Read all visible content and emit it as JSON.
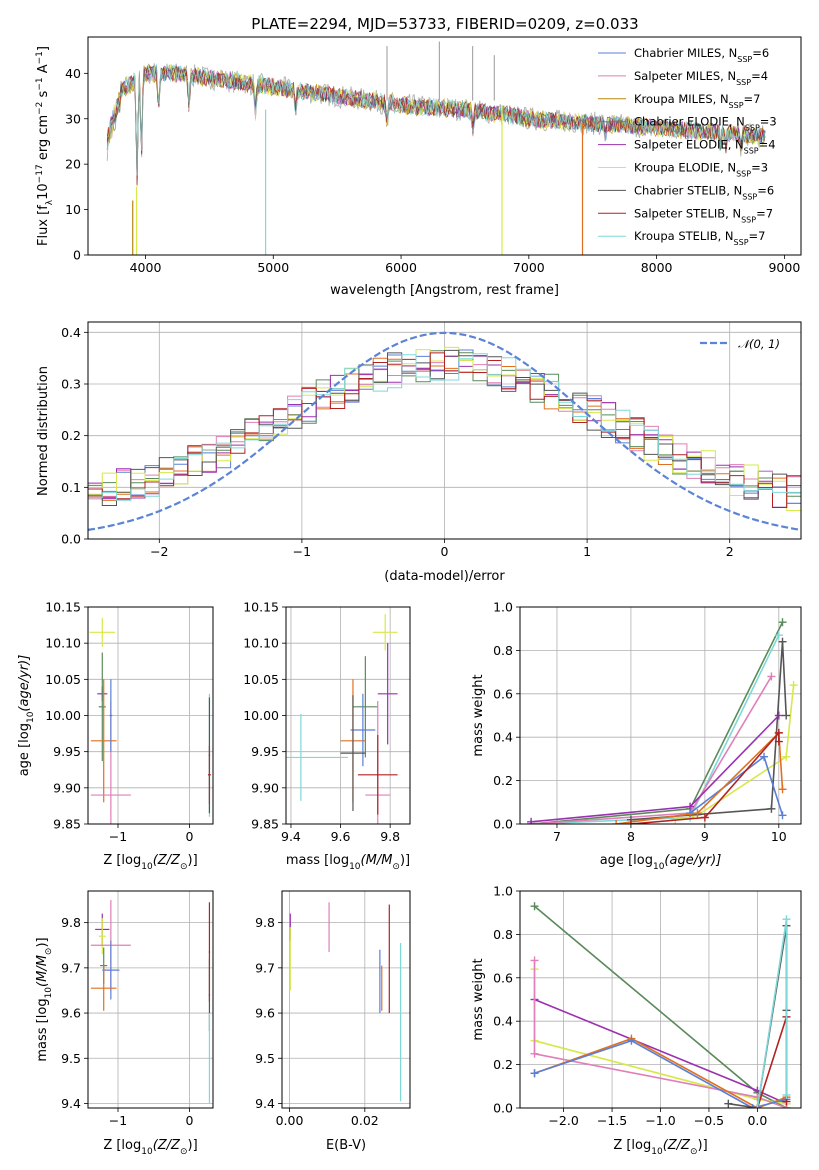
{
  "chart_data": [
    {
      "panel": "spectrum",
      "type": "line",
      "title": "PLATE=2294, MJD=53733, FIBERID=0209, z=0.033",
      "xlabel": "wavelength [Angstrom, rest frame]",
      "ylabel_parts": [
        "Flux [f",
        "λ",
        "10",
        "−17",
        " erg cm",
        "−2",
        " s",
        "−1",
        " A",
        "−1",
        "]"
      ],
      "xlim": [
        3550,
        9130
      ],
      "ylim": [
        0,
        48
      ],
      "xticks": [
        4000,
        5000,
        6000,
        7000,
        8000,
        9000
      ],
      "yticks": [
        0,
        10,
        20,
        30,
        40
      ],
      "grid": false,
      "legend_position": "top-right",
      "legend": [
        {
          "label": "Chabrier MILES, N",
          "sub": "SSP",
          "n": "=6",
          "color": "#5b7fd6"
        },
        {
          "label": "Salpeter MILES, N",
          "sub": "SSP",
          "n": "=4",
          "color": "#e07fb8"
        },
        {
          "label": "Kroupa MILES, N",
          "sub": "SSP",
          "n": "=7",
          "color": "#b8860b"
        },
        {
          "label": "Chabrier ELODIE, N",
          "sub": "SSP",
          "n": "=3",
          "color": "#5a8a5a"
        },
        {
          "label": "Salpeter ELODIE, N",
          "sub": "SSP",
          "n": "=4",
          "color": "#9b30b0"
        },
        {
          "label": "Kroupa ELODIE, N",
          "sub": "SSP",
          "n": "=3",
          "color": "#d7e84a"
        },
        {
          "label": "Chabrier STELIB, N",
          "sub": "SSP",
          "n": "=6",
          "color": "#555555"
        },
        {
          "label": "Salpeter STELIB, N",
          "sub": "SSP",
          "n": "=7",
          "color": "#b22222"
        },
        {
          "label": "Kroupa STELIB, N",
          "sub": "SSP",
          "n": "=7",
          "color": "#7fd8d8"
        }
      ],
      "continuum": {
        "x": [
          3700,
          3800,
          3900,
          4000,
          4200,
          4500,
          5000,
          5500,
          6000,
          6500,
          6800,
          7000,
          7500,
          8000,
          8500,
          8850
        ],
        "y": [
          27,
          36,
          38,
          40,
          40,
          39,
          37,
          35,
          33,
          32,
          31,
          30,
          29,
          28,
          27,
          26
        ]
      },
      "data_color": "#aaaaaa"
    },
    {
      "panel": "residuals",
      "type": "histogram",
      "xlabel": "(data-model)/error",
      "ylabel": "Normed distribution",
      "xlim": [
        -2.5,
        2.5
      ],
      "ylim": [
        0,
        0.42
      ],
      "xticks": [
        -2,
        -1,
        0,
        1,
        2
      ],
      "yticks": [
        0.0,
        0.1,
        0.2,
        0.3,
        0.4
      ],
      "grid": true,
      "legend_position": "top-right",
      "legend_label": "𝒩(0, 1)",
      "gauss_color": "#5b84d6",
      "bin_width": 0.1,
      "hist_colors": [
        "#5b7fd6",
        "#e07fb8",
        "#e07020",
        "#5a8a5a",
        "#9b30b0",
        "#d7e84a",
        "#555555",
        "#b22222",
        "#7fd8d8"
      ]
    },
    {
      "panel": "age-vs-Z",
      "type": "scatter",
      "xlabel_parts": [
        "Z [log",
        "10",
        "(Z/Z",
        "⊙",
        ")]"
      ],
      "ylabel_parts": [
        "age  [log",
        "10",
        "(age/yr)]"
      ],
      "xlim": [
        -1.42,
        0.33
      ],
      "ylim": [
        9.85,
        10.15
      ],
      "xticks": [
        -1,
        0
      ],
      "yticks": [
        9.85,
        9.9,
        9.95,
        10.0,
        10.05,
        10.1,
        10.15
      ],
      "grid": true,
      "points": [
        {
          "x": -1.22,
          "y": 10.115,
          "xerr": 0.18,
          "yerr": 0.02,
          "color": "#d7e84a"
        },
        {
          "x": -1.22,
          "y": 10.03,
          "xerr": 0.07,
          "yerr": 0.01,
          "color": "#9b30b0"
        },
        {
          "x": -1.22,
          "y": 10.012,
          "xerr": 0.05,
          "yerr": 0.075,
          "color": "#5a8a5a"
        },
        {
          "x": -1.2,
          "y": 9.965,
          "xerr": 0.18,
          "yerr": 0.085,
          "color": "#e07020"
        },
        {
          "x": -1.1,
          "y": 9.89,
          "xerr": 0.28,
          "yerr": 0.13,
          "color": "#e07fb8"
        },
        {
          "x": -1.1,
          "y": 10.0,
          "xerr": 0.02,
          "yerr": 0.05,
          "color": "#5b7fd6"
        },
        {
          "x": 0.28,
          "y": 9.945,
          "xerr": 0.01,
          "yerr": 0.085,
          "color": "#7fd8d8"
        },
        {
          "x": 0.28,
          "y": 9.918,
          "xerr": 0.02,
          "yerr": 0.04,
          "color": "#b22222"
        },
        {
          "x": 0.28,
          "y": 9.945,
          "xerr": 0.01,
          "yerr": 0.08,
          "color": "#555555"
        }
      ]
    },
    {
      "panel": "age-vs-mass",
      "type": "scatter",
      "xlabel_parts": [
        "mass [log",
        "10",
        "(M/M",
        "⊙",
        ")]"
      ],
      "xlim": [
        9.38,
        9.88
      ],
      "ylim": [
        9.85,
        10.15
      ],
      "xticks": [
        9.4,
        9.6,
        9.8
      ],
      "yticks": [
        9.85,
        9.9,
        9.95,
        10.0,
        10.05,
        10.1,
        10.15
      ],
      "grid": true,
      "points": [
        {
          "x": 9.78,
          "y": 10.115,
          "xerr": 0.05,
          "yerr": 0.025,
          "color": "#d7e84a"
        },
        {
          "x": 9.79,
          "y": 10.03,
          "xerr": 0.04,
          "yerr": 0.07,
          "color": "#9b30b0"
        },
        {
          "x": 9.7,
          "y": 10.012,
          "xerr": 0.05,
          "yerr": 0.07,
          "color": "#5a8a5a"
        },
        {
          "x": 9.65,
          "y": 9.965,
          "xerr": 0.05,
          "yerr": 0.085,
          "color": "#e07020"
        },
        {
          "x": 9.75,
          "y": 9.89,
          "xerr": 0.05,
          "yerr": 0.13,
          "color": "#e07fb8"
        },
        {
          "x": 9.69,
          "y": 9.98,
          "xerr": 0.05,
          "yerr": 0.05,
          "color": "#5b7fd6"
        },
        {
          "x": 9.44,
          "y": 9.942,
          "xerr": 0.19,
          "yerr": 0.06,
          "color": "#7fd8d8"
        },
        {
          "x": 9.75,
          "y": 9.918,
          "xerr": 0.08,
          "yerr": 0.055,
          "color": "#b22222"
        },
        {
          "x": 9.65,
          "y": 9.948,
          "xerr": 0.05,
          "yerr": 0.08,
          "color": "#555555"
        }
      ]
    },
    {
      "panel": "weight-vs-age",
      "type": "line",
      "xlabel_parts": [
        "age  [log",
        "10",
        "(age/yr)]"
      ],
      "ylabel": "mass weight",
      "xlim": [
        6.5,
        10.3
      ],
      "ylim": [
        0,
        1.0
      ],
      "xticks": [
        7,
        8,
        9,
        10
      ],
      "yticks": [
        0.0,
        0.2,
        0.4,
        0.6,
        0.8,
        1.0
      ],
      "grid": true,
      "series": [
        {
          "color": "#5a8a5a",
          "x": [
            6.65,
            8.8,
            10.05
          ],
          "y": [
            0.0,
            0.07,
            0.93
          ]
        },
        {
          "color": "#7fd8d8",
          "x": [
            6.65,
            8.8,
            10.0
          ],
          "y": [
            0.0,
            0.03,
            0.87
          ]
        },
        {
          "color": "#e07fb8",
          "x": [
            6.65,
            8.8,
            9.9
          ],
          "y": [
            0.0,
            0.05,
            0.68
          ]
        },
        {
          "color": "#d7e84a",
          "x": [
            8.6,
            8.9,
            10.1,
            10.2
          ],
          "y": [
            0.02,
            0.04,
            0.31,
            0.64
          ]
        },
        {
          "color": "#9b30b0",
          "x": [
            6.65,
            8.8,
            10.0
          ],
          "y": [
            0.01,
            0.08,
            0.5
          ]
        },
        {
          "color": "#555555",
          "x": [
            8.0,
            9.9,
            10.05,
            10.1
          ],
          "y": [
            0.02,
            0.07,
            0.84,
            0.5
          ]
        },
        {
          "color": "#5b7fd6",
          "x": [
            8.8,
            9.8,
            10.05
          ],
          "y": [
            0.05,
            0.31,
            0.04
          ]
        },
        {
          "color": "#e07020",
          "x": [
            7.8,
            8.9,
            10.0,
            10.05
          ],
          "y": [
            0.0,
            0.05,
            0.42,
            0.16
          ]
        },
        {
          "color": "#b22222",
          "x": [
            8.0,
            9.0,
            10.0,
            10.0
          ],
          "y": [
            0.0,
            0.03,
            0.42,
            0.38
          ]
        }
      ]
    },
    {
      "panel": "mass-vs-Z",
      "type": "scatter",
      "xlabel_parts": [
        "Z [log",
        "10",
        "(Z/Z",
        "⊙",
        ")]"
      ],
      "ylabel_parts": [
        "mass [log",
        "10",
        "(M/M",
        "⊙",
        ")]"
      ],
      "xlim": [
        -1.42,
        0.33
      ],
      "ylim": [
        9.39,
        9.87
      ],
      "xticks": [
        -1,
        0
      ],
      "yticks": [
        9.4,
        9.5,
        9.6,
        9.7,
        9.8
      ],
      "grid": true,
      "points": [
        {
          "x": -1.22,
          "y": 9.785,
          "xerr": 0.1,
          "yerr": 0.035,
          "color": "#9b30b0"
        },
        {
          "x": -1.22,
          "y": 9.77,
          "xerr": 0.05,
          "yerr": 0.04,
          "color": "#d7e84a"
        },
        {
          "x": -1.2,
          "y": 9.705,
          "xerr": 0.05,
          "yerr": 0.04,
          "color": "#5a8a5a"
        },
        {
          "x": -1.1,
          "y": 9.75,
          "xerr": 0.28,
          "yerr": 0.1,
          "color": "#e07fb8"
        },
        {
          "x": -1.1,
          "y": 9.695,
          "xerr": 0.12,
          "yerr": 0.065,
          "color": "#5b7fd6"
        },
        {
          "x": -1.2,
          "y": 9.655,
          "xerr": 0.18,
          "yerr": 0.05,
          "color": "#e07020"
        },
        {
          "x": 0.28,
          "y": 9.735,
          "xerr": 0.01,
          "yerr": 0.11,
          "color": "#b22222"
        },
        {
          "x": 0.28,
          "y": 9.64,
          "xerr": 0.01,
          "yerr": 0.08,
          "color": "#555555"
        },
        {
          "x": 0.28,
          "y": 9.5,
          "xerr": 0.01,
          "yerr": 0.1,
          "color": "#7fd8d8"
        }
      ]
    },
    {
      "panel": "mass-vs-EBV",
      "type": "scatter",
      "xlabel": "E(B-V)",
      "xlim": [
        -0.002,
        0.032
      ],
      "ylim": [
        9.39,
        9.87
      ],
      "xticks": [
        0.0,
        0.02
      ],
      "yticks": [
        9.4,
        9.5,
        9.6,
        9.7,
        9.8
      ],
      "grid": true,
      "points": [
        {
          "x": 0.0002,
          "y": 9.79,
          "xerr": 0,
          "yerr": 0.03,
          "color": "#9b30b0"
        },
        {
          "x": 0.0002,
          "y": 9.72,
          "xerr": 0,
          "yerr": 0.07,
          "color": "#d7e84a"
        },
        {
          "x": 0.0105,
          "y": 9.79,
          "xerr": 0,
          "yerr": 0.055,
          "color": "#e07fb8"
        },
        {
          "x": 0.024,
          "y": 9.67,
          "xerr": 0,
          "yerr": 0.07,
          "color": "#5b7fd6"
        },
        {
          "x": 0.0245,
          "y": 9.655,
          "xerr": 0,
          "yerr": 0.05,
          "color": "#e07020"
        },
        {
          "x": 0.0265,
          "y": 9.72,
          "xerr": 0,
          "yerr": 0.12,
          "color": "#b22222"
        },
        {
          "x": 0.0295,
          "y": 9.58,
          "xerr": 0,
          "yerr": 0.175,
          "color": "#7fd8d8"
        }
      ]
    },
    {
      "panel": "weight-vs-Z",
      "type": "line",
      "xlabel_parts": [
        "Z [log",
        "10",
        "(Z/Z",
        "⊙",
        ")]"
      ],
      "ylabel": "mass weight",
      "xlim": [
        -2.45,
        0.45
      ],
      "ylim": [
        0,
        1.0
      ],
      "xticks": [
        -2.0,
        -1.5,
        -1.0,
        -0.5,
        0.0
      ],
      "yticks": [
        0.0,
        0.2,
        0.4,
        0.6,
        0.8,
        1.0
      ],
      "grid": true,
      "series": [
        {
          "color": "#5a8a5a",
          "x": [
            -2.3,
            0.0,
            0.3
          ],
          "y": [
            0.93,
            0.07,
            0.0
          ]
        },
        {
          "color": "#9b30b0",
          "x": [
            -2.3,
            0.0,
            0.3
          ],
          "y": [
            0.5,
            0.08,
            0.02
          ]
        },
        {
          "color": "#d7e84a",
          "x": [
            -2.3,
            -2.3,
            0.0,
            0.3
          ],
          "y": [
            0.64,
            0.31,
            0.04,
            0.02
          ]
        },
        {
          "color": "#e07fb8",
          "x": [
            -2.3,
            -2.3,
            0.0,
            0.3
          ],
          "y": [
            0.68,
            0.25,
            0.05,
            0.0
          ]
        },
        {
          "color": "#e07020",
          "x": [
            -2.3,
            -1.3,
            0.0,
            0.3
          ],
          "y": [
            0.16,
            0.32,
            0.0,
            0.05
          ]
        },
        {
          "color": "#5b7fd6",
          "x": [
            -2.3,
            -1.3,
            -0.05,
            0.3
          ],
          "y": [
            0.16,
            0.31,
            0.0,
            0.04
          ]
        },
        {
          "color": "#555555",
          "x": [
            -0.3,
            0.0,
            0.3,
            0.3
          ],
          "y": [
            0.02,
            0.0,
            0.84,
            0.45
          ]
        },
        {
          "color": "#b22222",
          "x": [
            0.0,
            0.3,
            0.3
          ],
          "y": [
            0.0,
            0.42,
            0.03
          ]
        },
        {
          "color": "#7fd8d8",
          "x": [
            0.0,
            0.3,
            0.3
          ],
          "y": [
            0.0,
            0.87,
            0.06
          ]
        }
      ]
    }
  ]
}
